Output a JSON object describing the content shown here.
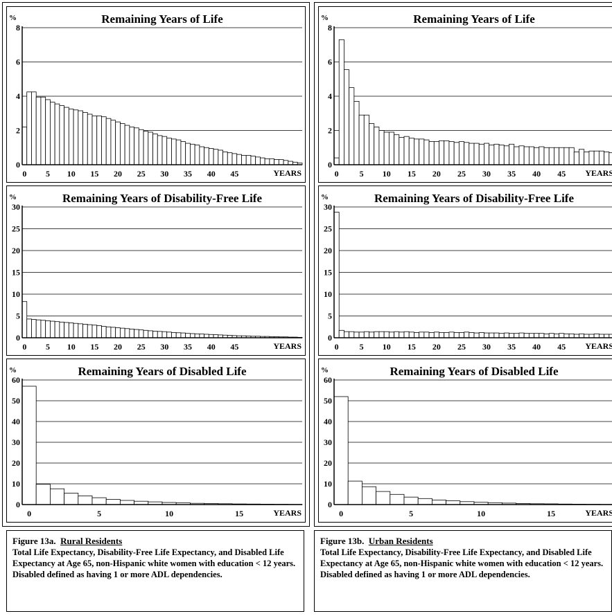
{
  "figures": [
    {
      "caption": {
        "figure_label": "Figure 13a.",
        "group": "Rural Residents",
        "text": "Total Life Expectancy, Disability-Free Life Expectancy, and Disabled Life Expectancy at Age 65, non-Hispanic white women with education < 12 years.  Disabled defined as having 1 or more ADL dependencies."
      }
    },
    {
      "caption": {
        "figure_label": "Figure 13b.",
        "group": "Urban Residents",
        "text": "Total Life Expectancy, Disability-Free Life Expectancy, and Disabled Life Expectancy at Age 65, non-Hispanic white women with education < 12 years.  Disabled defined as having 1 or more ADL dependencies."
      }
    }
  ],
  "chart_data": [
    {
      "id": "rural-total",
      "type": "bar",
      "title": "Remaining Years of Life",
      "ylabel": "%",
      "xlabel": "YEARS",
      "ylim": [
        0,
        8
      ],
      "yticks": [
        0,
        2,
        4,
        6,
        8
      ],
      "xticks": [
        0,
        5,
        10,
        15,
        20,
        25,
        30,
        35,
        40,
        45
      ],
      "grid": true,
      "values": [
        2.2,
        4.25,
        4.25,
        3.95,
        3.95,
        3.8,
        3.65,
        3.55,
        3.45,
        3.35,
        3.25,
        3.2,
        3.15,
        3.05,
        2.95,
        2.85,
        2.85,
        2.8,
        2.7,
        2.6,
        2.5,
        2.4,
        2.3,
        2.2,
        2.15,
        2.05,
        1.95,
        1.9,
        1.8,
        1.7,
        1.65,
        1.55,
        1.5,
        1.45,
        1.35,
        1.25,
        1.2,
        1.15,
        1.05,
        1.0,
        0.95,
        0.9,
        0.85,
        0.75,
        0.7,
        0.65,
        0.6,
        0.55,
        0.55,
        0.5,
        0.45,
        0.4,
        0.35,
        0.35,
        0.3,
        0.3,
        0.25,
        0.2,
        0.15,
        0.1
      ]
    },
    {
      "id": "urban-total",
      "type": "bar",
      "title": "Remaining Years of Life",
      "ylabel": "%",
      "xlabel": "YEARS",
      "ylim": [
        0,
        8
      ],
      "yticks": [
        0,
        2,
        4,
        6,
        8
      ],
      "xticks": [
        0,
        5,
        10,
        15,
        20,
        25,
        30,
        35,
        40,
        45
      ],
      "grid": true,
      "values": [
        0.4,
        7.3,
        5.55,
        4.5,
        3.7,
        2.9,
        2.9,
        2.4,
        2.2,
        2.0,
        1.9,
        1.9,
        1.75,
        1.6,
        1.65,
        1.55,
        1.5,
        1.5,
        1.45,
        1.35,
        1.35,
        1.4,
        1.4,
        1.35,
        1.3,
        1.35,
        1.3,
        1.25,
        1.25,
        1.2,
        1.25,
        1.15,
        1.2,
        1.15,
        1.1,
        1.2,
        1.05,
        1.1,
        1.05,
        1.05,
        1.0,
        1.05,
        1.0,
        1.0,
        1.0,
        1.0,
        1.0,
        1.0,
        0.75,
        0.9,
        0.75,
        0.8,
        0.8,
        0.8,
        0.75,
        0.7
      ]
    },
    {
      "id": "rural-disability-free",
      "type": "bar",
      "title": "Remaining Years of Disability-Free Life",
      "ylabel": "%",
      "xlabel": "YEARS",
      "ylim": [
        0,
        30
      ],
      "yticks": [
        0,
        5,
        10,
        15,
        20,
        25,
        30
      ],
      "xticks": [
        0,
        5,
        10,
        15,
        20,
        25,
        30,
        35,
        40,
        45
      ],
      "grid": true,
      "values": [
        8.3,
        4.3,
        4.2,
        4.1,
        4.0,
        3.9,
        3.8,
        3.7,
        3.6,
        3.5,
        3.4,
        3.3,
        3.2,
        3.1,
        3.0,
        2.9,
        2.8,
        2.6,
        2.5,
        2.4,
        2.3,
        2.2,
        2.1,
        2.0,
        1.9,
        1.8,
        1.7,
        1.6,
        1.5,
        1.45,
        1.4,
        1.3,
        1.2,
        1.15,
        1.1,
        1.0,
        0.95,
        0.9,
        0.85,
        0.8,
        0.75,
        0.7,
        0.65,
        0.6,
        0.55,
        0.5,
        0.45,
        0.45,
        0.4,
        0.35,
        0.35,
        0.3,
        0.3,
        0.25,
        0.25,
        0.2,
        0.2,
        0.15,
        0.15,
        0.1
      ]
    },
    {
      "id": "urban-disability-free",
      "type": "bar",
      "title": "Remaining Years of Disability-Free Life",
      "ylabel": "%",
      "xlabel": "YEARS",
      "ylim": [
        0,
        30
      ],
      "yticks": [
        0,
        5,
        10,
        15,
        20,
        25,
        30
      ],
      "xticks": [
        0,
        5,
        10,
        15,
        20,
        25,
        30,
        35,
        40,
        45
      ],
      "grid": true,
      "values": [
        28.8,
        1.7,
        1.4,
        1.4,
        1.3,
        1.3,
        1.4,
        1.3,
        1.4,
        1.4,
        1.4,
        1.3,
        1.4,
        1.3,
        1.4,
        1.3,
        1.2,
        1.3,
        1.3,
        1.2,
        1.3,
        1.2,
        1.2,
        1.3,
        1.2,
        1.2,
        1.3,
        1.2,
        1.1,
        1.2,
        1.1,
        1.1,
        1.1,
        1.0,
        1.1,
        1.0,
        1.0,
        1.1,
        1.0,
        1.0,
        1.0,
        1.0,
        0.9,
        1.0,
        0.9,
        1.0,
        0.9,
        0.9,
        0.8,
        0.9,
        0.8,
        0.8,
        0.9,
        0.8,
        0.8,
        0.8
      ]
    },
    {
      "id": "rural-disabled",
      "type": "bar",
      "title": "Remaining Years of Disabled Life",
      "ylabel": "%",
      "xlabel": "YEARS",
      "ylim": [
        0,
        60
      ],
      "yticks": [
        0,
        10,
        20,
        30,
        40,
        50,
        60
      ],
      "xticks": [
        0,
        5,
        10,
        15
      ],
      "grid": true,
      "values": [
        57.0,
        9.8,
        7.6,
        5.5,
        4.2,
        3.3,
        2.5,
        2.0,
        1.6,
        1.3,
        1.0,
        0.8,
        0.6,
        0.5,
        0.4,
        0.3,
        0.25,
        0.2,
        0.15,
        0.1
      ]
    },
    {
      "id": "urban-disabled",
      "type": "bar",
      "title": "Remaining Years of Disabled Life",
      "ylabel": "%",
      "xlabel": "YEARS",
      "ylim": [
        0,
        60
      ],
      "yticks": [
        0,
        10,
        20,
        30,
        40,
        50,
        60
      ],
      "xticks": [
        0,
        5,
        10,
        15
      ],
      "grid": true,
      "values": [
        52.0,
        11.3,
        8.6,
        6.3,
        4.9,
        3.6,
        2.9,
        2.2,
        1.8,
        1.4,
        1.1,
        0.9,
        0.7,
        0.5,
        0.4,
        0.35,
        0.25,
        0.2,
        0.15,
        0.1
      ]
    }
  ]
}
